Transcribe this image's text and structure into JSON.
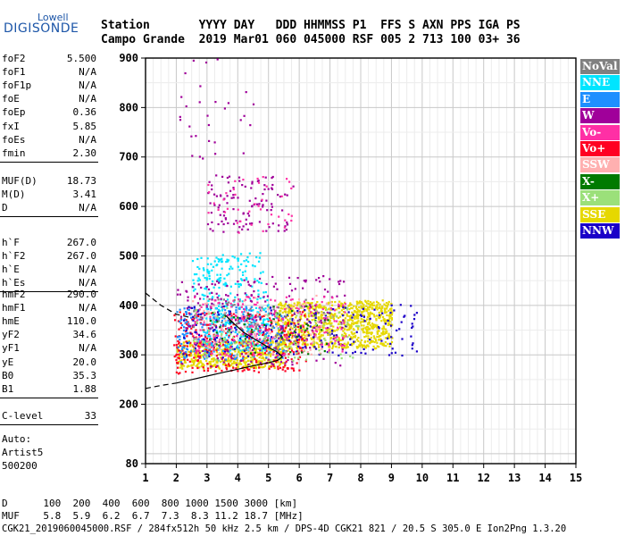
{
  "logo": {
    "top": "Lowell",
    "main": "DIGISONDE"
  },
  "header": {
    "labels": "Station       YYYY DAY   DDD HHMMSS P1  FFS S AXN PPS IGA PS",
    "values": "Campo Grande  2019 Mar01 060 045000 RSF 005 2 713 100 03+ 36"
  },
  "params_group1": [
    {
      "k": "foF2",
      "v": "5.500"
    },
    {
      "k": "foF1",
      "v": "N/A"
    },
    {
      "k": "foF1p",
      "v": "N/A"
    },
    {
      "k": "foE",
      "v": "N/A"
    },
    {
      "k": "foEp",
      "v": "0.36"
    },
    {
      "k": "fxI",
      "v": "5.85"
    },
    {
      "k": "foEs",
      "v": "N/A"
    },
    {
      "k": "fmin",
      "v": "2.30"
    }
  ],
  "params_group2": [
    {
      "k": "MUF(D)",
      "v": "18.73"
    },
    {
      "k": "M(D)",
      "v": "3.41"
    },
    {
      "k": "D",
      "v": "N/A"
    }
  ],
  "params_group3": [
    {
      "k": "h`F",
      "v": "267.0"
    },
    {
      "k": "h`F2",
      "v": "267.0"
    },
    {
      "k": "h`E",
      "v": "N/A"
    },
    {
      "k": "h`Es",
      "v": "N/A"
    }
  ],
  "params_group4": [
    {
      "k": "hmF2",
      "v": "290.0"
    },
    {
      "k": "hmF1",
      "v": "N/A"
    },
    {
      "k": "hmE",
      "v": "110.0"
    },
    {
      "k": "yF2",
      "v": "34.6"
    },
    {
      "k": "yF1",
      "v": "N/A"
    },
    {
      "k": "yE",
      "v": "20.0"
    },
    {
      "k": "B0",
      "v": "35.3"
    },
    {
      "k": "B1",
      "v": "1.88"
    }
  ],
  "params_group5": [
    {
      "k": "C-level",
      "v": "33"
    }
  ],
  "auto": [
    "Auto:",
    "Artist5",
    "500200"
  ],
  "legend": [
    {
      "label": "NoVal",
      "color": "#808080",
      "text_color": "#ffffff"
    },
    {
      "label": "NNE",
      "color": "#00e5ff",
      "text_color": "#ffffff"
    },
    {
      "label": "E",
      "color": "#1e8fff",
      "text_color": "#ffffff"
    },
    {
      "label": "W",
      "color": "#a0009a",
      "text_color": "#ffffff"
    },
    {
      "label": "Vo-",
      "color": "#ff2fa5",
      "text_color": "#ffffff"
    },
    {
      "label": "Vo+",
      "color": "#ff0022",
      "text_color": "#ffffff"
    },
    {
      "label": "SSW",
      "color": "#ffb0b0",
      "text_color": "#ffffff"
    },
    {
      "label": "X-",
      "color": "#007a00",
      "text_color": "#ffffff"
    },
    {
      "label": "X+",
      "color": "#9be07a",
      "text_color": "#ffffff"
    },
    {
      "label": "SSE",
      "color": "#e6d800",
      "text_color": "#ffffff"
    },
    {
      "label": "NNW",
      "color": "#1a00c8",
      "text_color": "#ffffff"
    }
  ],
  "bottom": {
    "row_d": "D      100  200  400  600  800 1000 1500 3000 [km]",
    "row_muf": "MUF    5.8  5.9  6.2  6.7  7.3  8.3 11.2 18.7 [MHz]",
    "footer": "CGK21_2019060045000.RSF / 284fx512h 50 kHz 2.5 km / DPS-4D CGK21 821 / 20.5 S 305.0 E Ion2Png 1.3.20"
  },
  "chart_data": {
    "type": "scatter",
    "xlim": [
      1,
      15
    ],
    "ylim": [
      80,
      900
    ],
    "x_ticks": [
      1,
      2,
      3,
      4,
      5,
      6,
      7,
      8,
      9,
      10,
      11,
      12,
      13,
      14,
      15
    ],
    "y_ticks": [
      80,
      200,
      300,
      400,
      500,
      600,
      700,
      800,
      900
    ],
    "grid": true,
    "legend_position": "right",
    "clusters": [
      {
        "class": "SSE",
        "x_range": [
          5.2,
          9.0
        ],
        "y_range": [
          315,
          410
        ],
        "count": 900
      },
      {
        "class": "SSE",
        "x_range": [
          2.0,
          5.5
        ],
        "y_range": [
          275,
          330
        ],
        "count": 500
      },
      {
        "class": "Vo+",
        "x_range": [
          1.9,
          6.2
        ],
        "y_range": [
          265,
          390
        ],
        "count": 350
      },
      {
        "class": "E",
        "x_range": [
          2.0,
          5.5
        ],
        "y_range": [
          290,
          400
        ],
        "count": 250
      },
      {
        "class": "NNE",
        "x_range": [
          2.8,
          5.0
        ],
        "y_range": [
          310,
          430
        ],
        "count": 200
      },
      {
        "class": "NNE",
        "x_range": [
          2.5,
          4.8
        ],
        "y_range": [
          435,
          505
        ],
        "count": 120
      },
      {
        "class": "W",
        "x_range": [
          2.0,
          7.5
        ],
        "y_range": [
          280,
          460
        ],
        "count": 250
      },
      {
        "class": "NNW",
        "x_range": [
          2.2,
          9.8
        ],
        "y_range": [
          300,
          400
        ],
        "count": 200
      },
      {
        "class": "Vo-",
        "x_range": [
          2.5,
          7.5
        ],
        "y_range": [
          300,
          420
        ],
        "count": 200
      },
      {
        "class": "X-",
        "x_range": [
          3.0,
          7.0
        ],
        "y_range": [
          300,
          400
        ],
        "count": 60
      },
      {
        "class": "X+",
        "x_range": [
          2.5,
          8.0
        ],
        "y_range": [
          290,
          400
        ],
        "count": 120
      },
      {
        "class": "SSW",
        "x_range": [
          2.5,
          7.0
        ],
        "y_range": [
          300,
          420
        ],
        "count": 100
      },
      {
        "class": "NoVal",
        "x_range": [
          2.5,
          7.0
        ],
        "y_range": [
          300,
          420
        ],
        "count": 60
      },
      {
        "class": "W",
        "x_range": [
          3.0,
          5.8
        ],
        "y_range": [
          550,
          665
        ],
        "count": 110
      },
      {
        "class": "Vo-",
        "x_range": [
          3.0,
          5.8
        ],
        "y_range": [
          550,
          665
        ],
        "count": 40
      },
      {
        "class": "W",
        "x_range": [
          2.0,
          4.5
        ],
        "y_range": [
          700,
          900
        ],
        "count": 30
      }
    ],
    "trace_solid": [
      [
        2.0,
        243
      ],
      [
        2.5,
        250
      ],
      [
        3.0,
        257
      ],
      [
        3.5,
        264
      ],
      [
        4.0,
        271
      ],
      [
        4.5,
        278
      ],
      [
        5.0,
        284
      ],
      [
        5.3,
        289
      ],
      [
        5.45,
        296
      ],
      [
        5.3,
        305
      ],
      [
        5.0,
        315
      ],
      [
        4.6,
        330
      ],
      [
        4.2,
        345
      ],
      [
        3.9,
        362
      ],
      [
        3.6,
        380
      ]
    ],
    "trace_dashed": [
      [
        1.0,
        232
      ],
      [
        1.5,
        238
      ],
      [
        2.0,
        243
      ]
    ],
    "trace_dashed_upper": [
      [
        1.0,
        425
      ],
      [
        1.5,
        400
      ],
      [
        2.0,
        382
      ],
      [
        2.5,
        375
      ]
    ]
  }
}
